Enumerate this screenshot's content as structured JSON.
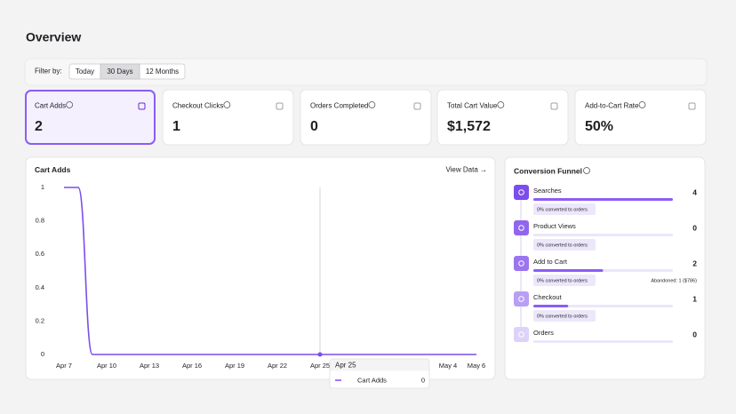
{
  "header": {
    "title": "Overview"
  },
  "filter": {
    "label": "Filter by:",
    "options": [
      "Today",
      "30 Days",
      "12 Months"
    ],
    "selected": 1
  },
  "cards": [
    {
      "label": "Cart Adds",
      "value": "2"
    },
    {
      "label": "Checkout Clicks",
      "value": "1"
    },
    {
      "label": "Orders Completed",
      "value": "0"
    },
    {
      "label": "Total Cart Value",
      "value": "$1,572"
    },
    {
      "label": "Add-to-Cart Rate",
      "value": "50%"
    }
  ],
  "selected_card": 0,
  "cart_adds_chart": {
    "type": "line",
    "title": "Cart Adds",
    "link": "View Data →",
    "categories": [
      "Apr 7",
      null,
      null,
      "Apr 10",
      null,
      null,
      "Apr 13",
      null,
      null,
      "Apr 16",
      null,
      null,
      "Apr 19",
      null,
      null,
      "Apr 22",
      null,
      null,
      "Apr 25",
      null,
      null,
      null,
      null,
      null,
      null,
      null,
      null,
      "May 4",
      null,
      "May 6"
    ],
    "series": [
      {
        "name": "Cart Adds",
        "color": "#7c4dea",
        "values": [
          1,
          1,
          0,
          0,
          0,
          0,
          0,
          0,
          0,
          0,
          0,
          0,
          0,
          0,
          0,
          0,
          0,
          0,
          0,
          0,
          0,
          0,
          0,
          0,
          0,
          0,
          0,
          0,
          0,
          0
        ]
      }
    ],
    "ylim": [
      0,
      1
    ],
    "yticks": [
      0,
      0.2,
      0.4,
      0.6,
      0.8,
      1
    ],
    "tooltip_index": 18
  },
  "funnel": {
    "title": "Conversion Funnel",
    "steps": [
      {
        "name": "Searches",
        "count": 4,
        "note": "0% converted to orders"
      },
      {
        "name": "Product Views",
        "count": 0,
        "note": "0% converted to orders"
      },
      {
        "name": "Add to Cart",
        "count": 2,
        "note": "0% converted to orders",
        "abandoned": "Abandoned: 1 ($786)"
      },
      {
        "name": "Checkout",
        "count": 1,
        "note": "0% converted to orders"
      },
      {
        "name": "Orders",
        "count": 0
      }
    ]
  }
}
